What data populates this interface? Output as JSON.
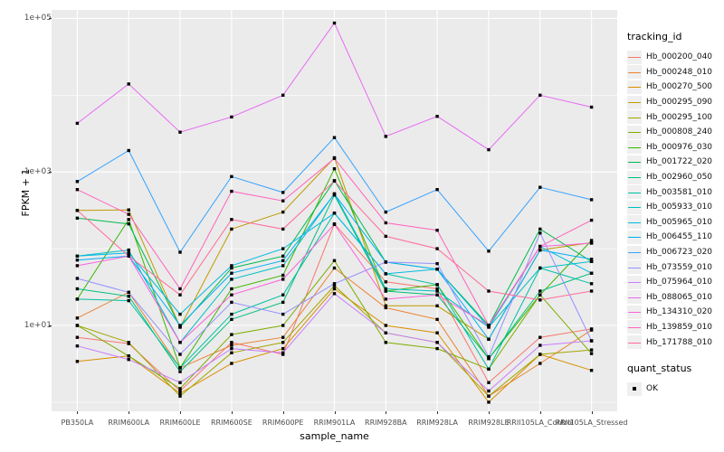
{
  "chart_data": {
    "type": "line",
    "title": "",
    "xlabel": "sample_name",
    "ylabel": "FPKM + 1",
    "y_scale": "log10",
    "ylim": [
      1,
      100000
    ],
    "grid": true,
    "panel_bg": "#EBEBEB",
    "grid_color": "#FFFFFF",
    "legend_position": "right",
    "legend_title": "tracking_id",
    "y_ticks": [
      {
        "label": "1e+05",
        "value": 100000
      },
      {
        "label": "1e+03",
        "value": 1000
      },
      {
        "label": "1e+01",
        "value": 10
      }
    ],
    "y_minor_ticks": [
      1,
      100,
      10000
    ],
    "categories": [
      "PB350LA",
      "RRIM600LA",
      "RRIM600LE",
      "RRIM600SE",
      "RRIM600PE",
      "RRIM901LA",
      "RRIM928BA",
      "RRIM928LA",
      "RRIM928LE",
      "RRII105LA_Control",
      "RRII105LA_Stressed"
    ],
    "series": [
      {
        "name": "Hb_000200_040",
        "color": "#F8766D",
        "values": [
          7,
          5.8,
          1.4,
          6,
          4.2,
          210,
          37,
          30,
          1.8,
          7,
          9
        ]
      },
      {
        "name": "Hb_000248_010",
        "color": "#EA8331",
        "values": [
          12.5,
          27,
          2.8,
          5.5,
          7,
          56,
          17,
          12,
          1.2,
          3.2,
          8.7
        ]
      },
      {
        "name": "Hb_000270_500",
        "color": "#D89000",
        "values": [
          3.4,
          4,
          1.3,
          3.2,
          5,
          30,
          10,
          8,
          1,
          4.2,
          2.6
        ]
      },
      {
        "name": "Hb_000295_090",
        "color": "#C09B00",
        "values": [
          315,
          320,
          9.5,
          180,
          300,
          1530,
          18,
          18,
          6.6,
          96,
          120
        ]
      },
      {
        "name": "Hb_000295_100",
        "color": "#A3A500",
        "values": [
          10,
          6,
          1.2,
          4.4,
          6,
          33,
          8,
          6,
          1.2,
          4.2,
          4.8
        ]
      },
      {
        "name": "Hb_000808_240",
        "color": "#7CAE00",
        "values": [
          10,
          4,
          1.5,
          7.6,
          10,
          70,
          6,
          5,
          2.7,
          25,
          4.3
        ]
      },
      {
        "name": "Hb_000976_030",
        "color": "#39B600",
        "values": [
          22,
          240,
          2.8,
          30,
          45,
          1100,
          28,
          34,
          3.7,
          25,
          128
        ]
      },
      {
        "name": "Hb_001722_020",
        "color": "#00BB4E",
        "values": [
          250,
          210,
          9.5,
          56,
          80,
          770,
          67,
          54,
          10,
          180,
          68
        ]
      },
      {
        "name": "Hb_002960_050",
        "color": "#00BF7D",
        "values": [
          30,
          24,
          2.5,
          12,
          20,
          500,
          28,
          25,
          3.7,
          28,
          48
        ]
      },
      {
        "name": "Hb_003581_010",
        "color": "#00C1A3",
        "values": [
          22,
          21,
          2.8,
          14,
          25,
          290,
          47,
          34,
          2.7,
          56,
          35
        ]
      },
      {
        "name": "Hb_005933_010",
        "color": "#00BFC4",
        "values": [
          80,
          96,
          6,
          40,
          60,
          520,
          30,
          28,
          9.5,
          56,
          68
        ]
      },
      {
        "name": "Hb_005965_010",
        "color": "#00BAE0",
        "values": [
          80,
          88,
          14,
          60,
          100,
          290,
          47,
          54,
          9.5,
          107,
          48
        ]
      },
      {
        "name": "Hb_006455_110",
        "color": "#00B0F6",
        "values": [
          71,
          80,
          10,
          48,
          70,
          515,
          67,
          54,
          6.6,
          96,
          73
        ]
      },
      {
        "name": "Hb_006723_020",
        "color": "#35A2FF",
        "values": [
          750,
          1900,
          90,
          870,
          540,
          2800,
          300,
          590,
          93,
          630,
          435
        ]
      },
      {
        "name": "Hb_073559_010",
        "color": "#9590FF",
        "values": [
          41,
          27,
          4.2,
          20,
          14,
          35,
          67,
          64,
          3.9,
          160,
          6.3
        ]
      },
      {
        "name": "Hb_075964_010",
        "color": "#C77CFF",
        "values": [
          5.4,
          3.6,
          1.8,
          5,
          4.4,
          26,
          8,
          6,
          1.4,
          5.5,
          6.3
        ]
      },
      {
        "name": "Hb_088065_010",
        "color": "#E76BF3",
        "values": [
          4300,
          14000,
          3300,
          5200,
          10000,
          87000,
          2900,
          5300,
          1950,
          10000,
          7000
        ]
      },
      {
        "name": "Hb_134310_020",
        "color": "#FA62DB",
        "values": [
          60,
          80,
          6,
          25,
          40,
          207,
          22,
          25,
          10,
          107,
          118
        ]
      },
      {
        "name": "Hb_139859_010",
        "color": "#FF62BC",
        "values": [
          590,
          280,
          30,
          560,
          420,
          1500,
          217,
          174,
          10,
          107,
          235
        ]
      },
      {
        "name": "Hb_171788_010",
        "color": "#FF6A98",
        "values": [
          315,
          80,
          25,
          240,
          180,
          760,
          145,
          100,
          28,
          21.5,
          28
        ]
      }
    ],
    "point_legend": {
      "title": "quant_status",
      "label": "OK",
      "marker": "black-square",
      "marker_color": "#000000"
    }
  }
}
